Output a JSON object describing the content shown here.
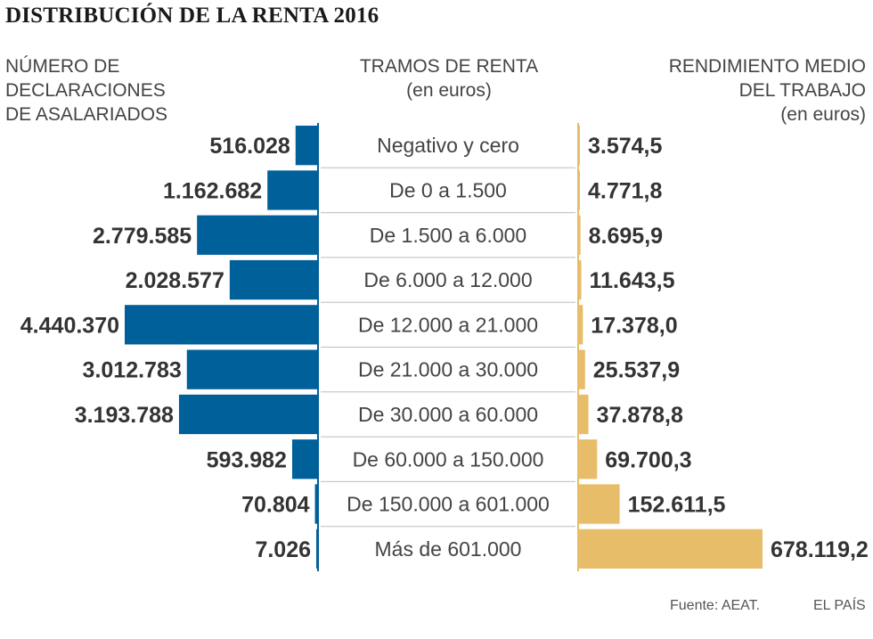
{
  "title": "DISTRIBUCIÓN DE LA RENTA 2016",
  "headers": {
    "left": [
      "NÚMERO DE",
      "DECLARACIONES",
      "DE ASALARIADOS"
    ],
    "middle": [
      "TRAMOS DE RENTA",
      "(en euros)"
    ],
    "right": [
      "RENDIMIENTO MEDIO",
      "DEL TRABAJO",
      "(en euros)"
    ]
  },
  "colors": {
    "left_bar": "#00609a",
    "right_bar": "#e8bd69",
    "divider": "#00609a",
    "row_line": "#bdbdbd"
  },
  "chart_data": {
    "type": "bar",
    "layout": "butterfly",
    "categories": [
      "Negativo y cero",
      "De 0 a 1.500",
      "De 1.500 a 6.000",
      "De 6.000 a 12.000",
      "De 12.000 a 21.000",
      "De 21.000 a 30.000",
      "De 30.000 a 60.000",
      "De 60.000 a 150.000",
      "De 150.000 a 601.000",
      "Más de 601.000"
    ],
    "series": [
      {
        "name": "Número de declaraciones de asalariados",
        "side": "left",
        "values": [
          516028,
          1162682,
          2779585,
          2028577,
          4440370,
          3012783,
          3193788,
          593982,
          70804,
          7026
        ],
        "labels": [
          "516.028",
          "1.162.682",
          "2.779.585",
          "2.028.577",
          "4.440.370",
          "3.012.783",
          "3.193.788",
          "593.982",
          "70.804",
          "7.026"
        ]
      },
      {
        "name": "Rendimiento medio del trabajo (en euros)",
        "side": "right",
        "values": [
          3574.5,
          4771.8,
          8695.9,
          11643.5,
          17378.0,
          25537.9,
          37878.8,
          69700.3,
          152611.5,
          678119.2
        ],
        "labels": [
          "3.574,5",
          "4.771,8",
          "8.695,9",
          "11.643,5",
          "17.378,0",
          "25.537,9",
          "37.878,8",
          "69.700,3",
          "152.611,5",
          "678.119,2"
        ]
      }
    ]
  },
  "footer": {
    "source": "Fuente: AEAT.",
    "brand": "EL PAÍS"
  }
}
